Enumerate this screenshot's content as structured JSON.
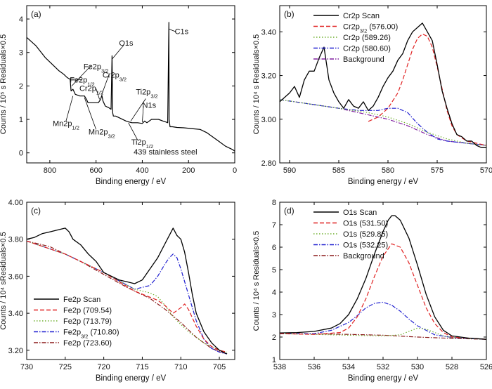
{
  "chart_data": [
    {
      "panel": "(a)",
      "type": "line",
      "xlabel": "Binding energy / eV",
      "ylabel": "Counts / 10⁵ s Residuals×0.5",
      "xlim": [
        900,
        0
      ],
      "ylim": [
        -0.3,
        4.4
      ],
      "xticks": [
        800,
        600,
        400,
        200,
        0
      ],
      "yticks": [
        0,
        1,
        2,
        3,
        4
      ],
      "series": [
        {
          "name": "",
          "color": "#000000",
          "x": [
            900,
            860,
            820,
            790,
            760,
            740,
            725,
            712,
            708,
            700,
            690,
            670,
            650,
            640,
            635,
            625,
            610,
            590,
            580,
            575,
            570,
            560,
            545,
            535,
            531,
            528,
            525,
            515,
            500,
            470,
            455,
            445,
            420,
            400,
            390,
            380,
            360,
            330,
            310,
            296,
            290,
            285,
            284,
            280,
            270,
            250,
            220,
            180,
            150,
            120,
            100,
            70,
            40,
            10,
            0
          ],
          "y": [
            3.45,
            3.2,
            2.85,
            2.65,
            2.45,
            2.35,
            2.25,
            2.2,
            1.85,
            1.9,
            1.75,
            1.7,
            1.7,
            1.58,
            1.5,
            1.5,
            1.5,
            1.5,
            1.6,
            1.72,
            1.55,
            1.4,
            1.35,
            1.3,
            2.9,
            1.2,
            1.1,
            1.1,
            1.05,
            0.95,
            0.92,
            0.9,
            0.9,
            0.88,
            0.95,
            0.9,
            1.0,
            1.0,
            0.95,
            0.92,
            0.9,
            3.9,
            1.0,
            0.78,
            0.78,
            0.76,
            0.75,
            0.72,
            0.7,
            0.6,
            0.5,
            0.35,
            0.2,
            0.1,
            0.05
          ]
        }
      ],
      "annotations": [
        {
          "text": "Fe2p",
          "sub": "1/2",
          "x": 660,
          "y": 2.1
        },
        {
          "text": "Fe2p",
          "sub": "3/2",
          "x": 600,
          "y": 2.5
        },
        {
          "text": "O1s",
          "x": 470,
          "y": 3.2
        },
        {
          "text": "C1s",
          "x": 230,
          "y": 3.55
        },
        {
          "text": "Cr2p",
          "sub": "3/2",
          "x": 520,
          "y": 2.25
        },
        {
          "text": "Cr2p",
          "sub": "1/2",
          "x": 620,
          "y": 1.85
        },
        {
          "text": "Ti2p",
          "sub": "3/2",
          "x": 380,
          "y": 1.75
        },
        {
          "text": "N1s",
          "x": 370,
          "y": 1.35
        },
        {
          "text": "Mn2p",
          "sub": "1/2",
          "x": 730,
          "y": 0.8
        },
        {
          "text": "Mn2p",
          "sub": "3/2",
          "x": 575,
          "y": 0.55
        },
        {
          "text": "Ti2p",
          "sub": "1/2",
          "x": 400,
          "y": 0.25
        },
        {
          "text": "439 stainless steel",
          "x": 300,
          "y": -0.05
        }
      ]
    },
    {
      "panel": "(b)",
      "type": "line",
      "xlabel": "Binding energy / eV",
      "ylabel": "Counts / 10⁴ s Residuals×0.5",
      "xlim": [
        591,
        570
      ],
      "ylim": [
        2.8,
        3.52
      ],
      "xticks": [
        590,
        585,
        580,
        575,
        570
      ],
      "yticks": [
        2.8,
        3.0,
        3.2,
        3.4
      ],
      "ytick_labels": [
        "2.80",
        "3.00",
        "3.20",
        "3.40"
      ],
      "legend": [
        {
          "label": "Cr2p Scan",
          "color": "#000000",
          "dash": "solid"
        },
        {
          "label": "Cr2p",
          "sub": "3/2",
          "suffix": " (576.00)",
          "color": "#e02020",
          "dash": "dashed"
        },
        {
          "label": "Cr2p (589.26)",
          "color": "#70b030",
          "dash": "dotted"
        },
        {
          "label": "Cr2p (580.60)",
          "color": "#2020d0",
          "dash": "dashdot"
        },
        {
          "label": "Background",
          "color": "#8020a0",
          "dash": "dashdot"
        }
      ],
      "series": [
        {
          "name": "Cr2p Scan",
          "color": "#000000",
          "style": "solid",
          "x": [
            591,
            590,
            589.5,
            589,
            588.5,
            588,
            587.5,
            587,
            586.5,
            586,
            585.5,
            585,
            584.5,
            584,
            583.5,
            583,
            582.5,
            582,
            581.5,
            581,
            580.5,
            580,
            579.5,
            579,
            578.5,
            578,
            577.5,
            577,
            576.5,
            576,
            575.5,
            575,
            574.5,
            574,
            573.5,
            573,
            572.5,
            572,
            571.5,
            571,
            570.5,
            570
          ],
          "y": [
            3.08,
            3.12,
            3.15,
            3.1,
            3.18,
            3.22,
            3.22,
            3.28,
            3.33,
            3.18,
            3.12,
            3.08,
            3.05,
            3.09,
            3.06,
            3.05,
            3.08,
            3.04,
            3.06,
            3.1,
            3.15,
            3.19,
            3.22,
            3.27,
            3.3,
            3.36,
            3.4,
            3.42,
            3.44,
            3.4,
            3.36,
            3.25,
            3.13,
            3.05,
            2.98,
            2.93,
            2.92,
            2.9,
            2.9,
            2.88,
            2.87,
            2.87
          ]
        },
        {
          "name": "Cr2p 3/2 (576.00)",
          "color": "#e02020",
          "style": "dashed",
          "x": [
            582,
            581,
            580,
            579,
            578.5,
            578,
            577.5,
            577,
            576.5,
            576,
            575.5,
            575,
            574.5,
            574,
            573.5,
            573,
            572,
            571,
            570
          ],
          "y": [
            2.99,
            3.01,
            3.05,
            3.12,
            3.18,
            3.25,
            3.32,
            3.37,
            3.39,
            3.38,
            3.33,
            3.24,
            3.14,
            3.04,
            2.97,
            2.93,
            2.9,
            2.89,
            2.88
          ]
        },
        {
          "name": "Cr2p (589.26)",
          "color": "#70b030",
          "style": "dotted",
          "x": [
            591,
            588,
            585,
            582,
            580,
            578,
            576,
            574,
            572,
            570
          ],
          "y": [
            3.09,
            3.07,
            3.05,
            3.03,
            3.01,
            2.98,
            2.94,
            2.91,
            2.89,
            2.88
          ]
        },
        {
          "name": "Cr2p (580.60)",
          "color": "#2020d0",
          "style": "dashdot",
          "x": [
            591,
            588,
            585,
            583,
            581,
            580,
            579,
            578,
            577,
            576,
            575,
            574,
            572,
            570
          ],
          "y": [
            3.09,
            3.07,
            3.05,
            3.04,
            3.04,
            3.05,
            3.05,
            3.03,
            2.98,
            2.94,
            2.91,
            2.9,
            2.89,
            2.88
          ]
        },
        {
          "name": "Background",
          "color": "#8020a0",
          "style": "dashdot",
          "x": [
            591,
            588,
            585,
            582,
            580,
            578,
            576,
            574,
            572,
            570
          ],
          "y": [
            3.09,
            3.07,
            3.05,
            3.02,
            3.0,
            2.97,
            2.93,
            2.9,
            2.89,
            2.88
          ]
        }
      ]
    },
    {
      "panel": "(c)",
      "type": "line",
      "xlabel": "Binding energy / eV",
      "ylabel": "Counts / 10⁴ sResiduals×0.5",
      "xlim": [
        730,
        703
      ],
      "ylim": [
        3.15,
        4.0
      ],
      "xticks": [
        730,
        725,
        720,
        715,
        710,
        705
      ],
      "yticks": [
        3.2,
        3.4,
        3.6,
        3.8,
        4.0
      ],
      "ytick_labels": [
        "3.20",
        "3.40",
        "3.60",
        "3.80",
        "4.00"
      ],
      "legend": [
        {
          "label": "Fe2p Scan",
          "color": "#000000",
          "dash": "solid"
        },
        {
          "label": "Fe2p (709.54)",
          "color": "#e02020",
          "dash": "dashed"
        },
        {
          "label": "Fe2p (713.79)",
          "color": "#70b030",
          "dash": "dotted"
        },
        {
          "label": "Fe2p",
          "sub": "3/2",
          "suffix": " (710.80)",
          "color": "#2020d0",
          "dash": "dashdot"
        },
        {
          "label": "Fe2p (723.60)",
          "color": "#8b1a1a",
          "dash": "dashdot"
        }
      ],
      "series": [
        {
          "name": "Fe2p Scan",
          "color": "#000000",
          "style": "solid",
          "x": [
            730,
            729,
            728,
            727,
            726,
            725,
            724.5,
            724,
            723,
            722,
            721,
            720,
            719,
            718,
            717,
            716,
            715,
            714,
            713,
            712,
            711.5,
            711,
            710.5,
            710,
            709.5,
            709,
            708.5,
            708,
            707,
            706,
            705,
            704
          ],
          "y": [
            3.8,
            3.81,
            3.83,
            3.84,
            3.85,
            3.86,
            3.84,
            3.8,
            3.77,
            3.72,
            3.68,
            3.62,
            3.6,
            3.58,
            3.57,
            3.56,
            3.58,
            3.64,
            3.7,
            3.78,
            3.82,
            3.86,
            3.82,
            3.8,
            3.73,
            3.62,
            3.5,
            3.4,
            3.3,
            3.24,
            3.2,
            3.18
          ]
        },
        {
          "name": "Fe2p (709.54)",
          "color": "#e02020",
          "style": "dashed",
          "x": [
            730,
            725,
            720,
            716,
            713,
            712,
            711,
            710,
            709.5,
            709,
            708,
            707,
            706,
            705,
            704
          ],
          "y": [
            3.79,
            3.72,
            3.62,
            3.52,
            3.47,
            3.44,
            3.4,
            3.43,
            3.45,
            3.42,
            3.33,
            3.26,
            3.22,
            3.2,
            3.19
          ]
        },
        {
          "name": "Fe2p (713.79)",
          "color": "#70b030",
          "style": "dotted",
          "x": [
            730,
            725,
            720,
            716,
            714,
            713,
            712,
            711,
            709,
            707,
            705,
            704
          ],
          "y": [
            3.79,
            3.72,
            3.62,
            3.53,
            3.51,
            3.49,
            3.44,
            3.38,
            3.3,
            3.24,
            3.2,
            3.19
          ]
        },
        {
          "name": "Fe2p 3/2 (710.80)",
          "color": "#2020d0",
          "style": "dashdot",
          "x": [
            730,
            725,
            720,
            716,
            714,
            713,
            712,
            711.5,
            711,
            710.5,
            710,
            709,
            708,
            707,
            706,
            705,
            704
          ],
          "y": [
            3.79,
            3.72,
            3.62,
            3.53,
            3.55,
            3.6,
            3.67,
            3.7,
            3.72,
            3.7,
            3.64,
            3.5,
            3.36,
            3.26,
            3.21,
            3.19,
            3.18
          ]
        },
        {
          "name": "Fe2p (723.60)",
          "color": "#8b1a1a",
          "style": "dashdot",
          "x": [
            730,
            727,
            725,
            723,
            720,
            717,
            714,
            712,
            710,
            708,
            706,
            704
          ],
          "y": [
            3.79,
            3.76,
            3.72,
            3.68,
            3.61,
            3.54,
            3.48,
            3.42,
            3.35,
            3.27,
            3.21,
            3.18
          ]
        }
      ]
    },
    {
      "panel": "(d)",
      "type": "line",
      "xlabel": "Binding energy / eV",
      "ylabel": "Counts / 10⁴ s Residuals×0.5",
      "xlim": [
        538,
        526
      ],
      "ylim": [
        1.0,
        8.0
      ],
      "xticks": [
        538,
        536,
        534,
        532,
        530,
        528,
        526
      ],
      "yticks": [
        1,
        2,
        3,
        4,
        5,
        6,
        7,
        8
      ],
      "legend": [
        {
          "label": "O1s Scan",
          "color": "#000000",
          "dash": "solid"
        },
        {
          "label": "O1s (531.50)",
          "color": "#e02020",
          "dash": "dashed"
        },
        {
          "label": "O1s (529.85)",
          "color": "#70b030",
          "dash": "dotted"
        },
        {
          "label": "O1s (532.25)",
          "color": "#2020d0",
          "dash": "dashdot"
        },
        {
          "label": "Background",
          "color": "#8b1a1a",
          "dash": "dashdot"
        }
      ],
      "series": [
        {
          "name": "O1s Scan",
          "color": "#000000",
          "style": "solid",
          "x": [
            538,
            537,
            536,
            535,
            534.5,
            534,
            533.5,
            533,
            532.5,
            532,
            531.7,
            531.5,
            531.3,
            531,
            530.5,
            530,
            529.5,
            529,
            528.5,
            528,
            527,
            526
          ],
          "y": [
            2.18,
            2.2,
            2.25,
            2.4,
            2.6,
            3.0,
            3.7,
            4.6,
            5.7,
            6.7,
            7.2,
            7.4,
            7.4,
            7.2,
            6.4,
            5.2,
            3.9,
            2.9,
            2.3,
            2.05,
            1.95,
            1.9
          ]
        },
        {
          "name": "O1s (531.50)",
          "color": "#e02020",
          "style": "dashed",
          "x": [
            538,
            536,
            534.5,
            534,
            533.5,
            533,
            532.5,
            532,
            531.5,
            531,
            530.5,
            530,
            529.5,
            529,
            528.5,
            528,
            527,
            526
          ],
          "y": [
            2.15,
            2.12,
            2.2,
            2.4,
            2.9,
            3.7,
            4.7,
            5.6,
            6.15,
            6.0,
            5.3,
            4.3,
            3.3,
            2.6,
            2.2,
            2.0,
            1.95,
            1.9
          ]
        },
        {
          "name": "O1s (529.85)",
          "color": "#70b030",
          "style": "dotted",
          "x": [
            538,
            536,
            534,
            532,
            531,
            530.5,
            530,
            529.5,
            529,
            528.5,
            528,
            527,
            526
          ],
          "y": [
            2.15,
            2.12,
            2.08,
            2.05,
            2.1,
            2.25,
            2.4,
            2.35,
            2.2,
            2.05,
            1.98,
            1.93,
            1.9
          ]
        },
        {
          "name": "O1s (532.25)",
          "color": "#2020d0",
          "style": "dashdot",
          "x": [
            538,
            536,
            535,
            534,
            533.5,
            533,
            532.5,
            532,
            531.5,
            531,
            530.5,
            530,
            529,
            528,
            527,
            526
          ],
          "y": [
            2.15,
            2.15,
            2.3,
            2.65,
            2.95,
            3.3,
            3.5,
            3.55,
            3.42,
            3.15,
            2.8,
            2.5,
            2.1,
            1.98,
            1.93,
            1.9
          ]
        },
        {
          "name": "Background",
          "color": "#8b1a1a",
          "style": "dashdot",
          "x": [
            538,
            536,
            534,
            532,
            530,
            528,
            526
          ],
          "y": [
            2.15,
            2.14,
            2.12,
            2.08,
            2.0,
            1.94,
            1.9
          ]
        }
      ]
    }
  ]
}
